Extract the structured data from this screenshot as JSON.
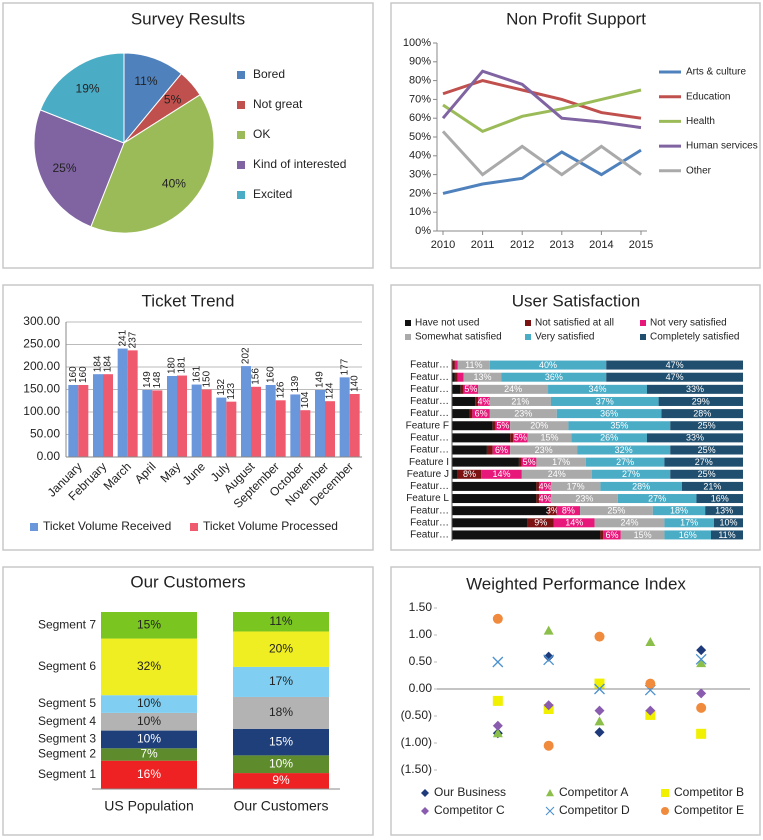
{
  "chart_data": [
    {
      "type": "pie",
      "title": "Survey Results",
      "categories": [
        "Bored",
        "Not great",
        "OK",
        "Kind of interested",
        "Excited"
      ],
      "values": [
        11,
        5,
        40,
        25,
        19
      ],
      "value_labels": [
        "11%",
        "5%",
        "40%",
        "25%",
        "19%"
      ],
      "colors": [
        "#4f81bd",
        "#c0504d",
        "#9bbb59",
        "#8064a2",
        "#4bacc6"
      ],
      "legend": "right"
    },
    {
      "type": "line",
      "title": "Non Profit Support",
      "x": [
        2010,
        2011,
        2012,
        2013,
        2014,
        2015
      ],
      "xlim": [
        2010,
        2015
      ],
      "xticks": [
        2010,
        2011,
        2012,
        2013,
        2014,
        2015
      ],
      "ylim": [
        0,
        100
      ],
      "yticks": [
        {
          "value": 0,
          "label": "0%"
        },
        {
          "value": 10,
          "label": "10%"
        },
        {
          "value": 20,
          "label": "20%"
        },
        {
          "value": 30,
          "label": "30%"
        },
        {
          "value": 40,
          "label": "40%"
        },
        {
          "value": 50,
          "label": "50%"
        },
        {
          "value": 60,
          "label": "60%"
        },
        {
          "value": 70,
          "label": "70%"
        },
        {
          "value": 80,
          "label": "80%"
        },
        {
          "value": 90,
          "label": "90%"
        },
        {
          "value": 100,
          "label": "100%"
        }
      ],
      "series": [
        {
          "name": "Arts & culture",
          "color": "#4f81bd",
          "values": [
            20,
            25,
            28,
            42,
            30,
            43
          ]
        },
        {
          "name": "Education",
          "color": "#c0504d",
          "values": [
            73,
            80,
            75,
            70,
            63,
            60
          ]
        },
        {
          "name": "Health",
          "color": "#9bbb59",
          "values": [
            67,
            53,
            61,
            65,
            70,
            75
          ]
        },
        {
          "name": "Human services",
          "color": "#8064a2",
          "values": [
            60,
            85,
            78,
            60,
            58,
            55
          ]
        },
        {
          "name": "Other",
          "color": "#aaaaaa",
          "values": [
            53,
            30,
            45,
            30,
            45,
            30
          ]
        }
      ],
      "legend": "right",
      "grid": false
    },
    {
      "type": "bar",
      "title": "Ticket Trend",
      "categories": [
        "January",
        "February",
        "March",
        "April",
        "May",
        "June",
        "July",
        "August",
        "September",
        "October",
        "November",
        "December"
      ],
      "ylim": [
        0,
        300
      ],
      "yticks": [
        {
          "value": 0,
          "label": "0.00"
        },
        {
          "value": 50,
          "label": "50.00"
        },
        {
          "value": 100,
          "label": "100.00"
        },
        {
          "value": 150,
          "label": "150.00"
        },
        {
          "value": 200,
          "label": "200.00"
        },
        {
          "value": 250,
          "label": "250.00"
        },
        {
          "value": 300,
          "label": "300.00"
        }
      ],
      "series": [
        {
          "name": "Ticket Volume Received",
          "color": "#6a96dc",
          "values": [
            160,
            184,
            241,
            149,
            180,
            161,
            132,
            202,
            160,
            139,
            149,
            177
          ]
        },
        {
          "name": "Ticket Volume Processed",
          "color": "#f05a6e",
          "values": [
            160,
            184,
            237,
            148,
            181,
            150,
            123,
            156,
            126,
            104,
            124,
            140
          ]
        }
      ],
      "legend": "bottom",
      "grid": true
    },
    {
      "type": "stacked_hbar",
      "title": "User Satisfaction",
      "categories": [
        "Featur…",
        "Featur…",
        "Featur…",
        "Featur…",
        "Featur…",
        "Feature F",
        "Featur…",
        "Featur…",
        "Feature I",
        "Feature J",
        "Featur…",
        "Feature L",
        "Featur…",
        "Featur…",
        "Featur…"
      ],
      "xlim": [
        0,
        100
      ],
      "series": [
        {
          "name": "Have not used",
          "color": "#111111",
          "values": [
            0,
            1,
            3,
            8,
            6,
            14,
            20,
            12,
            23,
            2,
            29,
            29,
            33,
            26,
            51
          ]
        },
        {
          "name": "Not satisfied at all",
          "color": "#7a1212",
          "values": [
            1,
            1,
            1,
            1,
            1,
            1,
            1,
            2,
            1,
            8,
            1,
            1,
            3,
            9,
            1
          ],
          "value_labels": [
            null,
            null,
            null,
            null,
            null,
            null,
            null,
            null,
            null,
            "8%",
            null,
            null,
            "3%",
            "9%",
            null
          ]
        },
        {
          "name": "Not very satisfied",
          "color": "#e8177a",
          "values": [
            1,
            2,
            5,
            4,
            6,
            5,
            5,
            6,
            5,
            14,
            4,
            4,
            8,
            14,
            6
          ],
          "value_labels": [
            null,
            null,
            "5%",
            "4%",
            "6%",
            "5%",
            "5%",
            "6%",
            "5%",
            "14%",
            "4%",
            "4%",
            "8%",
            "14%",
            "6%"
          ]
        },
        {
          "name": "Somewhat satisfied",
          "color": "#aaaaaa",
          "values": [
            11,
            13,
            24,
            21,
            23,
            20,
            15,
            23,
            17,
            24,
            17,
            23,
            25,
            24,
            15
          ],
          "value_labels": [
            "11%",
            "13%",
            "24%",
            "21%",
            "23%",
            "20%",
            "15%",
            "23%",
            "17%",
            "24%",
            "17%",
            "23%",
            "25%",
            "24%",
            "15%"
          ]
        },
        {
          "name": "Very satisfied",
          "color": "#4bacc6",
          "values": [
            40,
            36,
            34,
            37,
            36,
            35,
            26,
            32,
            27,
            27,
            28,
            27,
            18,
            17,
            16
          ],
          "value_labels": [
            "40%",
            "36%",
            "34%",
            "37%",
            "36%",
            "35%",
            "26%",
            "32%",
            "27%",
            "27%",
            "28%",
            "27%",
            "18%",
            "17%",
            "16%"
          ]
        },
        {
          "name": "Completely satisfied",
          "color": "#1f4e6e",
          "values": [
            47,
            47,
            33,
            29,
            28,
            25,
            33,
            25,
            27,
            25,
            21,
            16,
            13,
            10,
            11
          ],
          "value_labels": [
            "47%",
            "47%",
            "33%",
            "29%",
            "28%",
            "25%",
            "33%",
            "25%",
            "27%",
            "25%",
            "21%",
            "16%",
            "13%",
            "10%",
            "11%"
          ]
        }
      ],
      "legend": "top"
    },
    {
      "type": "stacked_bar",
      "title": "Our Customers",
      "categories": [
        "US Population",
        "Our Customers"
      ],
      "ylim": [
        0,
        100
      ],
      "series": [
        {
          "name": "Segment 1",
          "color": "#ee2222",
          "values": [
            16,
            9
          ],
          "value_labels": [
            "16%",
            "9%"
          ]
        },
        {
          "name": "Segment 2",
          "color": "#5e8c2c",
          "values": [
            7,
            10
          ],
          "value_labels": [
            "7%",
            "10%"
          ]
        },
        {
          "name": "Segment 3",
          "color": "#1f3f7a",
          "values": [
            10,
            15
          ],
          "value_labels": [
            "10%",
            "15%"
          ]
        },
        {
          "name": "Segment 4",
          "color": "#b3b3b3",
          "values": [
            10,
            18
          ],
          "value_labels": [
            "10%",
            "18%"
          ]
        },
        {
          "name": "Segment 5",
          "color": "#80cff2",
          "values": [
            10,
            17
          ],
          "value_labels": [
            "10%",
            "17%"
          ]
        },
        {
          "name": "Segment 6",
          "color": "#eeee22",
          "values": [
            32,
            20
          ],
          "value_labels": [
            "32%",
            "20%"
          ]
        },
        {
          "name": "Segment 7",
          "color": "#7ac520",
          "values": [
            15,
            11
          ],
          "value_labels": [
            "15%",
            "11%"
          ]
        }
      ],
      "legend": "left"
    },
    {
      "type": "scatter",
      "title": "Weighted Performance Index",
      "x": [
        1,
        2,
        3,
        4,
        5
      ],
      "xlim": [
        0,
        6
      ],
      "ylim": [
        -1.5,
        1.5
      ],
      "yticks": [
        {
          "value": 1.5,
          "label": "1.50"
        },
        {
          "value": 1,
          "label": "1.00"
        },
        {
          "value": 0.5,
          "label": "0.50"
        },
        {
          "value": 0,
          "label": "0.00"
        },
        {
          "value": -0.5,
          "label": "(0.50)"
        },
        {
          "value": -1,
          "label": "(1.00)"
        },
        {
          "value": -1.5,
          "label": "(1.50)"
        }
      ],
      "series": [
        {
          "name": "Our Business",
          "color": "#1f3a7a",
          "marker": "diamond",
          "values": [
            -0.82,
            0.6,
            -0.8,
            -0.42,
            0.72
          ]
        },
        {
          "name": "Competitor A",
          "color": "#8cbf4a",
          "marker": "triangle",
          "values": [
            -0.82,
            1.08,
            -0.6,
            0.87,
            0.48
          ]
        },
        {
          "name": "Competitor B",
          "color": "#f0f000",
          "marker": "square",
          "values": [
            -0.22,
            -0.37,
            0.1,
            -0.48,
            -0.83
          ]
        },
        {
          "name": "Competitor C",
          "color": "#8a5cb0",
          "marker": "diamond",
          "values": [
            -0.68,
            -0.3,
            -0.4,
            -0.4,
            -0.08
          ]
        },
        {
          "name": "Competitor D",
          "color": "#4a90d0",
          "marker": "x",
          "values": [
            0.5,
            0.54,
            0.0,
            -0.02,
            0.55
          ]
        },
        {
          "name": "Competitor E",
          "color": "#f08a3c",
          "marker": "circle",
          "values": [
            1.3,
            -1.05,
            0.97,
            0.1,
            -0.35
          ]
        }
      ],
      "legend": "bottom",
      "grid": false
    }
  ]
}
